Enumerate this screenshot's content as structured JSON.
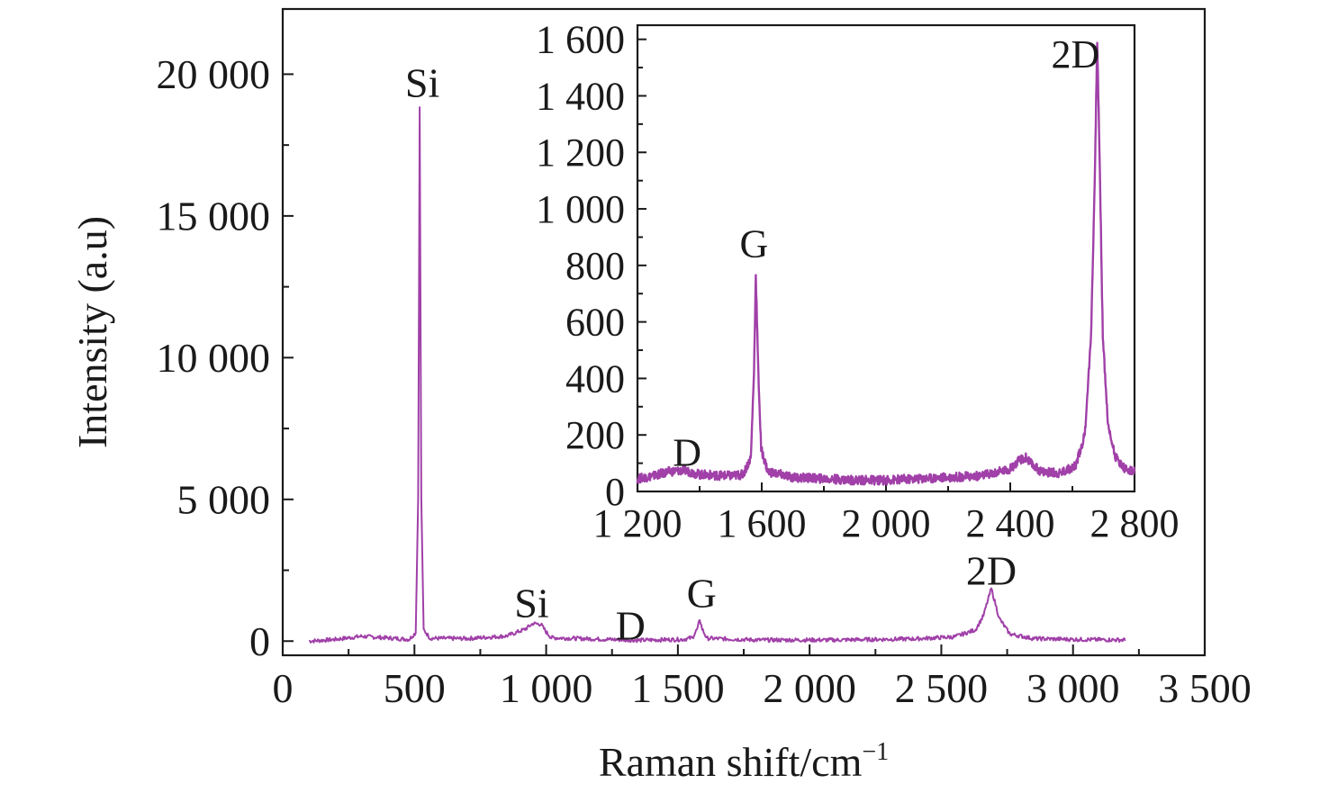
{
  "colors": {
    "trace": "#a040a8",
    "axis": "#1a1a1a",
    "background": "#ffffff"
  },
  "chart_data": [
    {
      "type": "line",
      "xlabel": "Raman shift/cm",
      "xlabel_sup": "−1",
      "ylabel": "Intensity (a.u)",
      "xlim": [
        0,
        3500
      ],
      "ylim": [
        -500,
        22300
      ],
      "xticks": [
        0,
        500,
        1000,
        1500,
        2000,
        2500,
        3000,
        3500
      ],
      "xtick_labels": [
        "0",
        "500",
        "1 000",
        "1 500",
        "2 000",
        "2 500",
        "3 000",
        "3 500"
      ],
      "yticks": [
        0,
        5000,
        10000,
        15000,
        20000
      ],
      "ytick_labels": [
        "0",
        "5 000",
        "10 000",
        "15 000",
        "20 000"
      ],
      "grid": false,
      "series": [
        {
          "points": [
            [
              100,
              0
            ],
            [
              200,
              60
            ],
            [
              300,
              170
            ],
            [
              400,
              110
            ],
            [
              480,
              60
            ],
            [
              505,
              300
            ],
            [
              514,
              5000
            ],
            [
              520,
              18800
            ],
            [
              526,
              5000
            ],
            [
              535,
              400
            ],
            [
              560,
              100
            ],
            [
              700,
              90
            ],
            [
              850,
              180
            ],
            [
              920,
              420
            ],
            [
              950,
              620
            ],
            [
              980,
              600
            ],
            [
              1000,
              320
            ],
            [
              1020,
              120
            ],
            [
              1200,
              70
            ],
            [
              1350,
              30
            ],
            [
              1450,
              50
            ],
            [
              1520,
              60
            ],
            [
              1555,
              120
            ],
            [
              1575,
              450
            ],
            [
              1583,
              780
            ],
            [
              1592,
              430
            ],
            [
              1610,
              100
            ],
            [
              1800,
              40
            ],
            [
              2100,
              40
            ],
            [
              2400,
              80
            ],
            [
              2550,
              150
            ],
            [
              2630,
              400
            ],
            [
              2660,
              900
            ],
            [
              2680,
              1550
            ],
            [
              2690,
              1850
            ],
            [
              2700,
              1500
            ],
            [
              2720,
              800
            ],
            [
              2760,
              250
            ],
            [
              2850,
              90
            ],
            [
              3000,
              60
            ],
            [
              3200,
              40
            ]
          ]
        }
      ],
      "annotations": [
        {
          "text": "Si",
          "x": 530,
          "y": 19200
        },
        {
          "text": "Si",
          "x": 945,
          "y": 850
        },
        {
          "text": "D",
          "x": 1320,
          "y": 50
        },
        {
          "text": "G",
          "x": 1590,
          "y": 1200
        },
        {
          "text": "2D",
          "x": 2690,
          "y": 2000
        }
      ]
    },
    {
      "type": "line",
      "role": "inset",
      "xlim": [
        1200,
        2800
      ],
      "ylim": [
        0,
        1650
      ],
      "xticks": [
        1200,
        1600,
        2000,
        2400,
        2800
      ],
      "xtick_labels": [
        "1 200",
        "1 600",
        "2 000",
        "2 400",
        "2 800"
      ],
      "yticks": [
        0,
        200,
        400,
        600,
        800,
        1000,
        1200,
        1400,
        1600
      ],
      "ytick_labels": [
        "0",
        "200",
        "400",
        "600",
        "800",
        "1 000",
        "1 200",
        "1 400",
        "1 600"
      ],
      "grid": false,
      "series": [
        {
          "points": [
            [
              1200,
              45
            ],
            [
              1250,
              55
            ],
            [
              1300,
              70
            ],
            [
              1350,
              75
            ],
            [
              1400,
              60
            ],
            [
              1500,
              55
            ],
            [
              1540,
              60
            ],
            [
              1565,
              120
            ],
            [
              1575,
              420
            ],
            [
              1581,
              770
            ],
            [
              1588,
              450
            ],
            [
              1598,
              150
            ],
            [
              1620,
              70
            ],
            [
              1700,
              50
            ],
            [
              1800,
              45
            ],
            [
              1900,
              40
            ],
            [
              2000,
              40
            ],
            [
              2100,
              45
            ],
            [
              2200,
              50
            ],
            [
              2300,
              55
            ],
            [
              2350,
              65
            ],
            [
              2400,
              80
            ],
            [
              2430,
              110
            ],
            [
              2450,
              120
            ],
            [
              2470,
              95
            ],
            [
              2500,
              70
            ],
            [
              2560,
              65
            ],
            [
              2610,
              90
            ],
            [
              2640,
              200
            ],
            [
              2660,
              550
            ],
            [
              2672,
              1100
            ],
            [
              2680,
              1600
            ],
            [
              2688,
              1150
            ],
            [
              2698,
              550
            ],
            [
              2715,
              230
            ],
            [
              2740,
              120
            ],
            [
              2770,
              80
            ],
            [
              2800,
              70
            ]
          ]
        }
      ],
      "annotations": [
        {
          "text": "D",
          "x": 1360,
          "y": 90
        },
        {
          "text": "G",
          "x": 1575,
          "y": 830
        },
        {
          "text": "2D",
          "x": 2610,
          "y": 1500
        }
      ]
    }
  ]
}
